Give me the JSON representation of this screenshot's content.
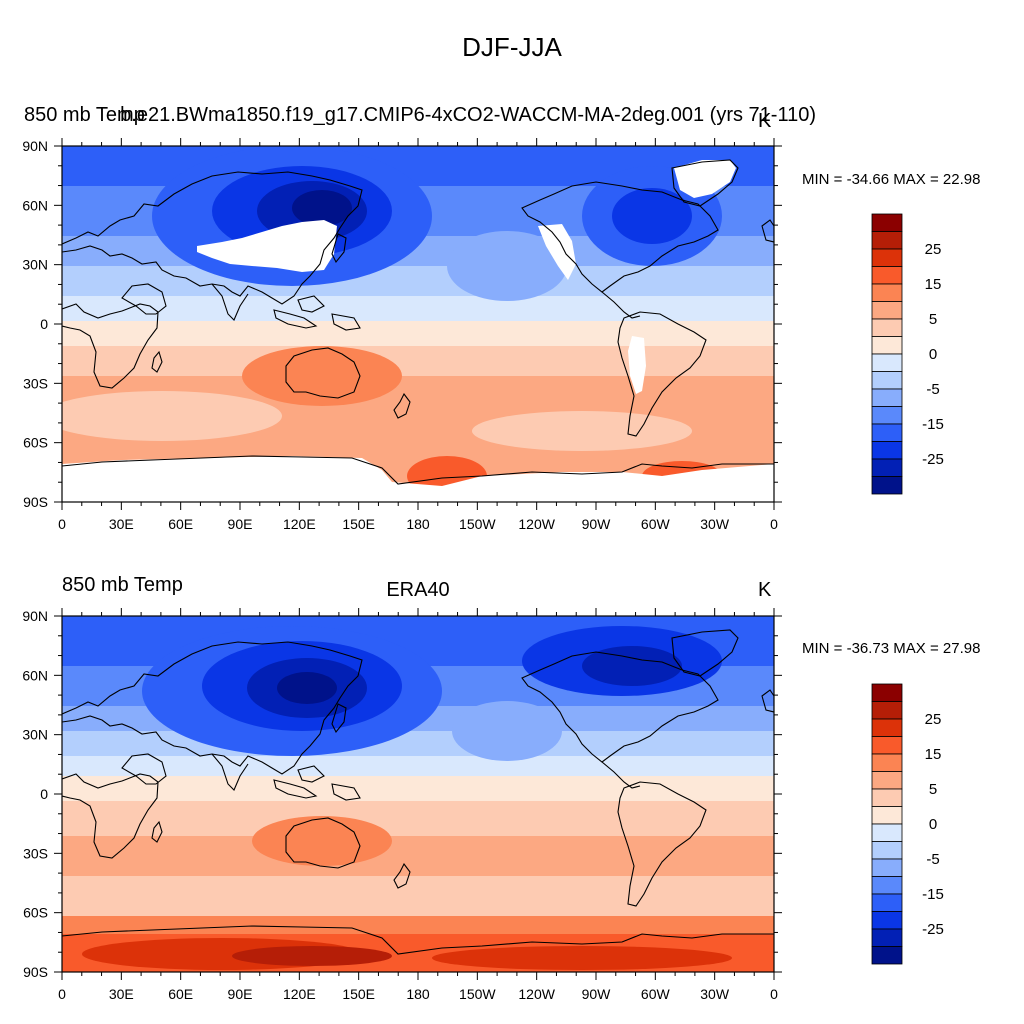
{
  "title": "DJF-JJA",
  "x_tick_labels": [
    "0",
    "30E",
    "60E",
    "90E",
    "120E",
    "150E",
    "180",
    "150W",
    "120W",
    "90W",
    "60W",
    "30W",
    "0"
  ],
  "y_tick_labels": [
    "90N",
    "60N",
    "30N",
    "0",
    "30S",
    "60S",
    "90S"
  ],
  "colorbar": {
    "labels": [
      "25",
      "15",
      "5",
      "0",
      "-5",
      "-15",
      "-25"
    ],
    "colors": [
      "#8b0000",
      "#b51e07",
      "#dc3209",
      "#f95a2b",
      "#fb8453",
      "#fca882",
      "#fdcbb2",
      "#fde8d8",
      "#d9e8fd",
      "#b3cffd",
      "#88adfc",
      "#5a89fb",
      "#2d5ff8",
      "#0a36e6",
      "#0220b5",
      "#00128a"
    ]
  },
  "panels": [
    {
      "id": "top",
      "left_title": "850 mb Temp",
      "center_title": "b.e21.BWma1850.f19_g17.CMIP6-4xCO2-WACCM-MA-2deg.001 (yrs 71-110)",
      "units": "K",
      "min_max": "MIN = -34.66 MAX =  22.98",
      "missing_color": "#ffffff"
    },
    {
      "id": "bottom",
      "left_title": "850 mb Temp",
      "center_title": "ERA40",
      "units": "K",
      "min_max": "MIN = -36.73 MAX =  27.98"
    }
  ]
}
